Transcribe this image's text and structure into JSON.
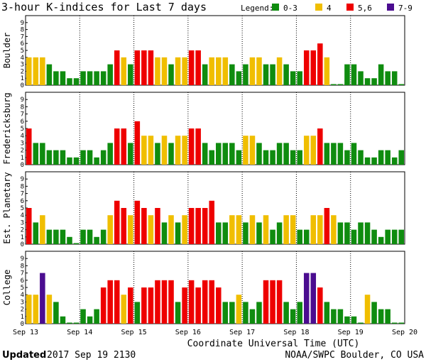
{
  "title": "3-hour K-indices for Last 7 days",
  "legend": {
    "label": "Legend:",
    "items": [
      {
        "label": "0-3",
        "color": "#0f8c0f"
      },
      {
        "label": "4",
        "color": "#f0be00"
      },
      {
        "label": "5,6",
        "color": "#ee0000"
      },
      {
        "label": "7-9",
        "color": "#4b0d90"
      }
    ]
  },
  "footer": {
    "updated_label": "Updated",
    "updated_time": "2017 Sep 19 2130",
    "credit": "NOAA/SWPC Boulder, CO USA"
  },
  "chart_data": {
    "type": "bar",
    "xlabel": "Coordinate Universal Time (UTC)",
    "ylim": [
      0,
      9
    ],
    "y_ticks": [
      "0",
      "1",
      "2",
      "3",
      "4",
      "5",
      "6",
      "7",
      "8",
      "9"
    ],
    "x_tick_labels": [
      "Sep 13",
      "Sep 14",
      "Sep 15",
      "Sep 16",
      "Sep 17",
      "Sep 18",
      "Sep 19",
      "Sep 20"
    ],
    "bars_per_day": 8,
    "series": [
      {
        "name": "Boulder",
        "values": [
          4,
          4,
          4,
          3,
          2,
          2,
          1,
          1,
          2,
          2,
          2,
          2,
          3,
          5,
          4,
          3,
          5,
          5,
          5,
          4,
          4,
          3,
          4,
          4,
          5,
          5,
          3,
          4,
          4,
          4,
          3,
          2,
          3,
          4,
          4,
          3,
          3,
          4,
          3,
          2,
          2,
          5,
          5,
          6,
          4,
          0,
          0,
          3,
          3,
          2,
          1,
          1,
          3,
          2,
          2,
          0
        ]
      },
      {
        "name": "Fredericksburg",
        "values": [
          5,
          3,
          3,
          2,
          2,
          2,
          1,
          1,
          2,
          2,
          1,
          2,
          3,
          5,
          5,
          3,
          6,
          4,
          4,
          3,
          4,
          3,
          4,
          4,
          5,
          5,
          3,
          2,
          3,
          3,
          3,
          2,
          4,
          4,
          3,
          2,
          2,
          3,
          3,
          2,
          2,
          4,
          4,
          5,
          3,
          3,
          3,
          2,
          3,
          2,
          1,
          1,
          2,
          2,
          1,
          2
        ]
      },
      {
        "name": "Est. Planetary",
        "values": [
          5,
          3,
          4,
          2,
          2,
          2,
          1,
          0,
          2,
          2,
          1,
          2,
          4,
          6,
          5,
          4,
          6,
          5,
          4,
          5,
          3,
          4,
          3,
          4,
          5,
          5,
          5,
          6,
          3,
          3,
          4,
          4,
          3,
          4,
          3,
          4,
          2,
          3,
          4,
          4,
          2,
          2,
          4,
          4,
          5,
          4,
          3,
          3,
          2,
          3,
          3,
          2,
          1,
          2,
          2,
          2
        ]
      },
      {
        "name": "College",
        "values": [
          4,
          4,
          7,
          4,
          3,
          1,
          0,
          0,
          2,
          1,
          2,
          5,
          6,
          6,
          4,
          5,
          3,
          5,
          5,
          6,
          6,
          6,
          3,
          5,
          6,
          5,
          6,
          6,
          5,
          3,
          3,
          4,
          3,
          2,
          3,
          6,
          6,
          6,
          3,
          2,
          3,
          7,
          7,
          5,
          3,
          2,
          2,
          1,
          1,
          0,
          4,
          3,
          2,
          2,
          0,
          0
        ]
      }
    ]
  }
}
